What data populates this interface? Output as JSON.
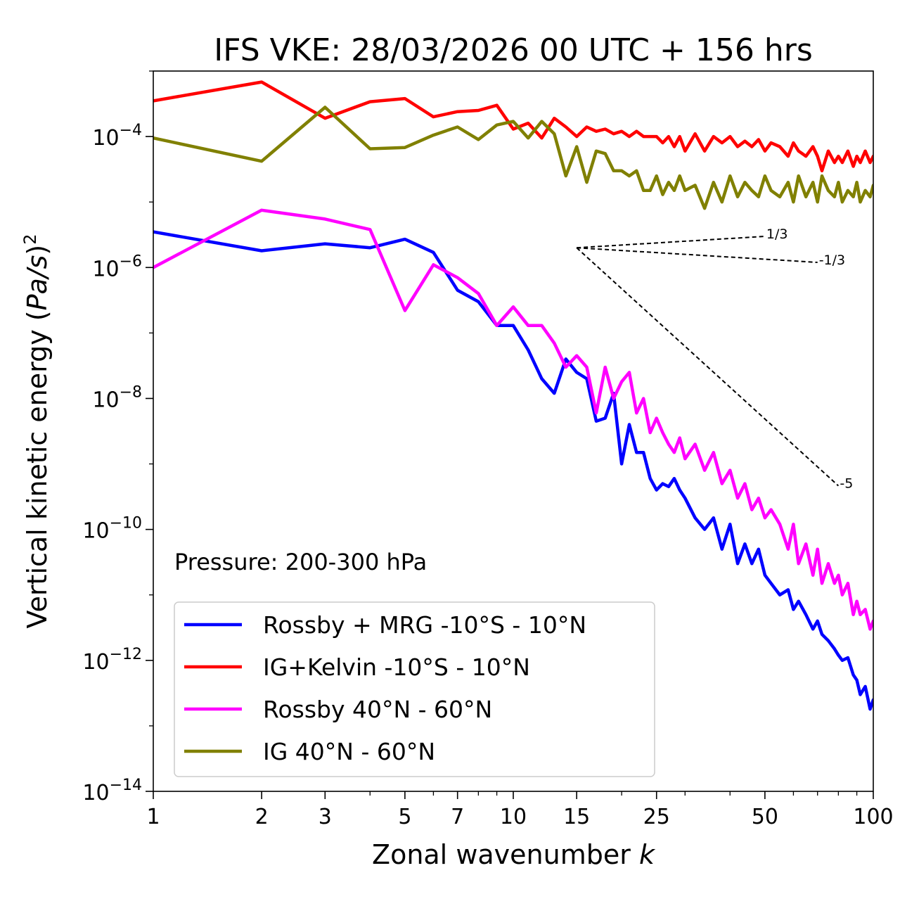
{
  "chart_data": {
    "type": "line",
    "title": "IFS VKE: 28/03/2026 00 UTC + 156 hrs",
    "xlabel_main": "Zonal wavenumber ",
    "xlabel_var": "k",
    "ylabel_main": "Vertical kinetic energy (",
    "ylabel_var": "Pa/s",
    "ylabel_close": ")",
    "ylabel_sup": "2",
    "xscale": "log",
    "yscale": "log",
    "xlim": [
      1,
      100
    ],
    "ylim": [
      1e-14,
      0.001
    ],
    "x_ticks": [
      1,
      2,
      3,
      5,
      7,
      10,
      15,
      25,
      50,
      100
    ],
    "x_tick_labels": [
      "1",
      "2",
      "3",
      "5",
      "7",
      "10",
      "15",
      "25",
      "50",
      "100"
    ],
    "y_ticks_exp": [
      -4,
      -6,
      -8,
      -10,
      -12,
      -14
    ],
    "y_tick_base": "10",
    "y_tick_exps": [
      "−4",
      "−6",
      "−8",
      "−10",
      "−12",
      "−14"
    ],
    "annotation": "Pressure: 200-300 hPa",
    "legend_position": "lower-left",
    "series": [
      {
        "name": "Rossby + MRG -10°S - 10°N",
        "color": "#0000ff",
        "x": [
          1,
          2,
          3,
          4,
          5,
          6,
          7,
          8,
          9,
          10,
          11,
          12,
          13,
          14,
          15,
          16,
          17,
          18,
          19,
          20,
          21,
          22,
          23,
          24,
          25,
          26,
          27,
          28,
          29,
          30,
          32,
          34,
          36,
          38,
          40,
          42,
          44,
          46,
          48,
          50,
          52,
          55,
          58,
          60,
          62,
          65,
          68,
          70,
          72,
          75,
          78,
          80,
          82,
          85,
          88,
          90,
          92,
          95,
          98,
          100
        ],
        "y": [
          3.5e-06,
          1.8e-06,
          2.3e-06,
          2e-06,
          2.7e-06,
          1.7e-06,
          4.5e-07,
          3e-07,
          1.3e-07,
          1.3e-07,
          5.5e-08,
          2e-08,
          1.2e-08,
          4e-08,
          2.5e-08,
          2e-08,
          4.5e-09,
          5e-09,
          1.2e-08,
          1e-09,
          4e-09,
          1.5e-09,
          1.5e-09,
          6e-10,
          4e-10,
          5e-10,
          4.5e-10,
          6e-10,
          4e-10,
          3e-10,
          1.5e-10,
          1e-10,
          1.5e-10,
          5e-11,
          1.2e-10,
          3e-11,
          6e-11,
          3e-11,
          5e-11,
          2e-11,
          1.5e-11,
          1e-11,
          1.2e-11,
          6e-12,
          8e-12,
          5e-12,
          3e-12,
          4e-12,
          2.5e-12,
          2e-12,
          1.5e-12,
          1.2e-12,
          1e-12,
          1.1e-12,
          6e-13,
          5e-13,
          3e-13,
          4e-13,
          1.8e-13,
          2.5e-13
        ]
      },
      {
        "name": "IG+Kelvin -10°S - 10°N",
        "color": "#ff0000",
        "x": [
          1,
          2,
          3,
          4,
          5,
          6,
          7,
          8,
          9,
          10,
          11,
          12,
          13,
          14,
          15,
          16,
          17,
          18,
          19,
          20,
          21,
          22,
          23,
          24,
          25,
          26,
          27,
          28,
          29,
          30,
          32,
          34,
          36,
          38,
          40,
          42,
          44,
          46,
          48,
          50,
          52,
          55,
          58,
          60,
          62,
          65,
          68,
          70,
          72,
          75,
          78,
          80,
          82,
          85,
          88,
          90,
          92,
          95,
          98,
          100
        ],
        "y": [
          0.00035,
          0.00068,
          0.00019,
          0.00034,
          0.00038,
          0.0002,
          0.00024,
          0.00025,
          0.0003,
          0.00013,
          0.00016,
          9.5e-05,
          0.00019,
          0.00014,
          0.0001,
          0.00014,
          0.00012,
          0.00013,
          0.00011,
          0.00012,
          0.0001,
          0.00012,
          0.0001,
          0.0001,
          0.0001,
          8e-05,
          0.0001,
          7e-05,
          0.0001,
          6e-05,
          0.00011,
          6e-05,
          0.0001,
          8e-05,
          0.0001,
          7e-05,
          8.5e-05,
          7e-05,
          9e-05,
          6e-05,
          8e-05,
          7e-05,
          5e-05,
          8e-05,
          6e-05,
          5e-05,
          7e-05,
          5e-05,
          3e-05,
          6e-05,
          4e-05,
          5e-05,
          4e-05,
          6e-05,
          3.5e-05,
          5e-05,
          4e-05,
          6e-05,
          4e-05,
          5e-05
        ]
      },
      {
        "name": "Rossby 40°N - 60°N",
        "color": "#ff00ff",
        "x": [
          1,
          2,
          3,
          4,
          5,
          6,
          7,
          8,
          9,
          10,
          11,
          12,
          13,
          14,
          15,
          16,
          17,
          18,
          19,
          20,
          21,
          22,
          23,
          24,
          25,
          26,
          27,
          28,
          29,
          30,
          32,
          34,
          36,
          38,
          40,
          42,
          44,
          46,
          48,
          50,
          52,
          55,
          58,
          60,
          62,
          65,
          68,
          70,
          72,
          75,
          78,
          80,
          82,
          85,
          88,
          90,
          92,
          95,
          98,
          100
        ],
        "y": [
          1e-06,
          7.5e-06,
          5.5e-06,
          3.8e-06,
          2.2e-07,
          1.1e-06,
          7e-07,
          4e-07,
          1.3e-07,
          2.5e-07,
          1.3e-07,
          1.3e-07,
          7e-08,
          3e-08,
          4.5e-08,
          3e-08,
          6e-09,
          3e-08,
          1e-08,
          1.8e-08,
          2.5e-08,
          6e-09,
          1e-08,
          3e-09,
          5e-09,
          3e-09,
          2e-09,
          1.5e-09,
          2.5e-09,
          1.2e-09,
          2e-09,
          8e-10,
          1.5e-09,
          5e-10,
          8e-10,
          3e-10,
          5e-10,
          2e-10,
          3e-10,
          1.5e-10,
          2e-10,
          1.2e-10,
          5e-11,
          1.2e-10,
          3e-11,
          6e-11,
          2e-11,
          5e-11,
          1.5e-11,
          3e-11,
          1.5e-11,
          2e-11,
          1e-11,
          1.5e-11,
          5e-12,
          8e-12,
          5e-12,
          6e-12,
          3e-12,
          4e-12
        ]
      },
      {
        "name": "IG 40°N - 60°N",
        "color": "#808000",
        "x": [
          1,
          2,
          3,
          4,
          5,
          6,
          7,
          8,
          9,
          10,
          11,
          12,
          13,
          14,
          15,
          16,
          17,
          18,
          19,
          20,
          21,
          22,
          23,
          24,
          25,
          26,
          27,
          28,
          29,
          30,
          32,
          34,
          36,
          38,
          40,
          42,
          44,
          46,
          48,
          50,
          52,
          55,
          58,
          60,
          62,
          65,
          68,
          70,
          72,
          75,
          78,
          80,
          82,
          85,
          88,
          90,
          92,
          95,
          98,
          100
        ],
        "y": [
          9.5e-05,
          4.2e-05,
          0.00028,
          6.5e-05,
          6.8e-05,
          0.000105,
          0.00014,
          9e-05,
          0.00015,
          0.00017,
          9.5e-05,
          0.00017,
          0.00011,
          2.5e-05,
          7e-05,
          2e-05,
          6e-05,
          5.5e-05,
          3e-05,
          3e-05,
          2.5e-05,
          3e-05,
          1.5e-05,
          1.5e-05,
          2.5e-05,
          1.3e-05,
          2e-05,
          1.5e-05,
          2.5e-05,
          1.5e-05,
          1.8e-05,
          8e-06,
          2e-05,
          1e-05,
          2.5e-05,
          1.2e-05,
          2e-05,
          1.5e-05,
          1.2e-05,
          2.5e-05,
          1.5e-05,
          1.2e-05,
          2e-05,
          1e-05,
          2.5e-05,
          1.2e-05,
          2e-05,
          1e-05,
          2.5e-05,
          1.5e-05,
          1.2e-05,
          2e-05,
          1e-05,
          1.5e-05,
          1.2e-05,
          2e-05,
          1e-05,
          1.5e-05,
          1.2e-05,
          1.8e-05
        ]
      }
    ],
    "reference_slopes": [
      {
        "label": "1/3",
        "slope": 0.3333,
        "x_start": 15,
        "x_end": 50,
        "y_start": 2e-06
      },
      {
        "label": "-1/3",
        "slope": -0.3333,
        "x_start": 15,
        "x_end": 70,
        "y_start": 2e-06
      },
      {
        "label": "-5",
        "slope": -5,
        "x_start": 15,
        "x_end": 80,
        "y_start": 2e-06
      }
    ]
  }
}
